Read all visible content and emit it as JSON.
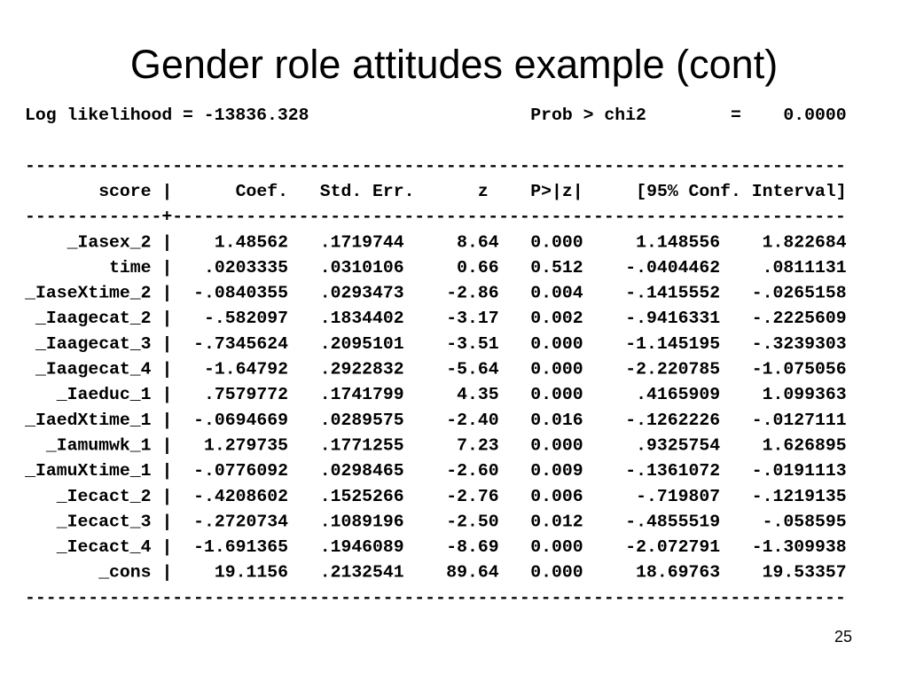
{
  "title": "Gender role attitudes example (cont)",
  "header": {
    "log_likelihood": "Log likelihood = -13836.328",
    "prob_label": "Prob > chi2",
    "prob_eq": "=",
    "prob_value": "0.0000"
  },
  "rule": "------------------------------------------------------------------------------",
  "cross_rule": "-------------+----------------------------------------------------------------",
  "separator": "|",
  "table": {
    "columns": [
      "score",
      "Coef.",
      "Std. Err.",
      "z",
      "P>|z|",
      "[95% Conf. Interval]"
    ],
    "rows": [
      [
        "_Iasex_2",
        "1.48562",
        ".1719744",
        "8.64",
        "0.000",
        "1.148556",
        "1.822684"
      ],
      [
        "time",
        ".0203335",
        ".0310106",
        "0.66",
        "0.512",
        "-.0404462",
        ".0811131"
      ],
      [
        "_IaseXtime_2",
        "-.0840355",
        ".0293473",
        "-2.86",
        "0.004",
        "-.1415552",
        "-.0265158"
      ],
      [
        "_Iaagecat_2",
        "-.582097",
        ".1834402",
        "-3.17",
        "0.002",
        "-.9416331",
        "-.2225609"
      ],
      [
        "_Iaagecat_3",
        "-.7345624",
        ".2095101",
        "-3.51",
        "0.000",
        "-1.145195",
        "-.3239303"
      ],
      [
        "_Iaagecat_4",
        "-1.64792",
        ".2922832",
        "-5.64",
        "0.000",
        "-2.220785",
        "-1.075056"
      ],
      [
        "_Iaeduc_1",
        ".7579772",
        ".1741799",
        "4.35",
        "0.000",
        ".4165909",
        "1.099363"
      ],
      [
        "_IaedXtime_1",
        "-.0694669",
        ".0289575",
        "-2.40",
        "0.016",
        "-.1262226",
        "-.0127111"
      ],
      [
        "_Iamumwk_1",
        "1.279735",
        ".1771255",
        "7.23",
        "0.000",
        ".9325754",
        "1.626895"
      ],
      [
        "_IamuXtime_1",
        "-.0776092",
        ".0298465",
        "-2.60",
        "0.009",
        "-.1361072",
        "-.0191113"
      ],
      [
        "_Iecact_2",
        "-.4208602",
        ".1525266",
        "-2.76",
        "0.006",
        "-.719807",
        "-.1219135"
      ],
      [
        "_Iecact_3",
        "-.2720734",
        ".1089196",
        "-2.50",
        "0.012",
        "-.4855519",
        "-.058595"
      ],
      [
        "_Iecact_4",
        "-1.691365",
        ".1946089",
        "-8.69",
        "0.000",
        "-2.072791",
        "-1.309938"
      ],
      [
        "_cons",
        "19.1156",
        ".2132541",
        "89.64",
        "0.000",
        "18.69763",
        "19.53357"
      ]
    ]
  },
  "page_number": "25"
}
